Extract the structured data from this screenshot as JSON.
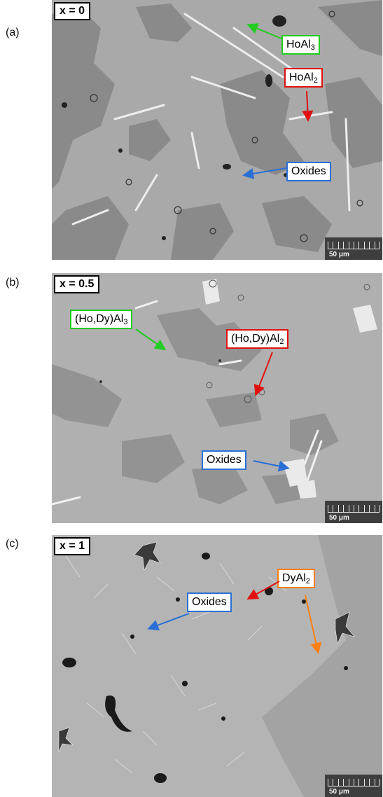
{
  "panels": [
    {
      "letter": "(a)",
      "x_label": "x = 0",
      "callouts": [
        {
          "base": "HoAl",
          "sub": "3",
          "color": "#22cc22"
        },
        {
          "base": "HoAl",
          "sub": "2",
          "color": "#e01010"
        },
        {
          "base": "Oxides",
          "sub": "",
          "color": "#2a6fd6"
        }
      ],
      "scale_label": "50 μm"
    },
    {
      "letter": "(b)",
      "x_label": "x = 0.5",
      "callouts": [
        {
          "base": "(Ho,Dy)Al",
          "sub": "3",
          "color": "#22cc22"
        },
        {
          "base": "(Ho,Dy)Al",
          "sub": "2",
          "color": "#e01010"
        },
        {
          "base": "Oxides",
          "sub": "",
          "color": "#2a6fd6"
        }
      ],
      "scale_label": "50 μm"
    },
    {
      "letter": "(c)",
      "x_label": "x = 1",
      "callouts": [
        {
          "base": "DyAl",
          "sub": "2",
          "color": "#ff7f0e"
        },
        {
          "base": "Oxides",
          "sub": "",
          "color": "#2a6fd6"
        }
      ],
      "scale_label": "50 μm"
    }
  ]
}
